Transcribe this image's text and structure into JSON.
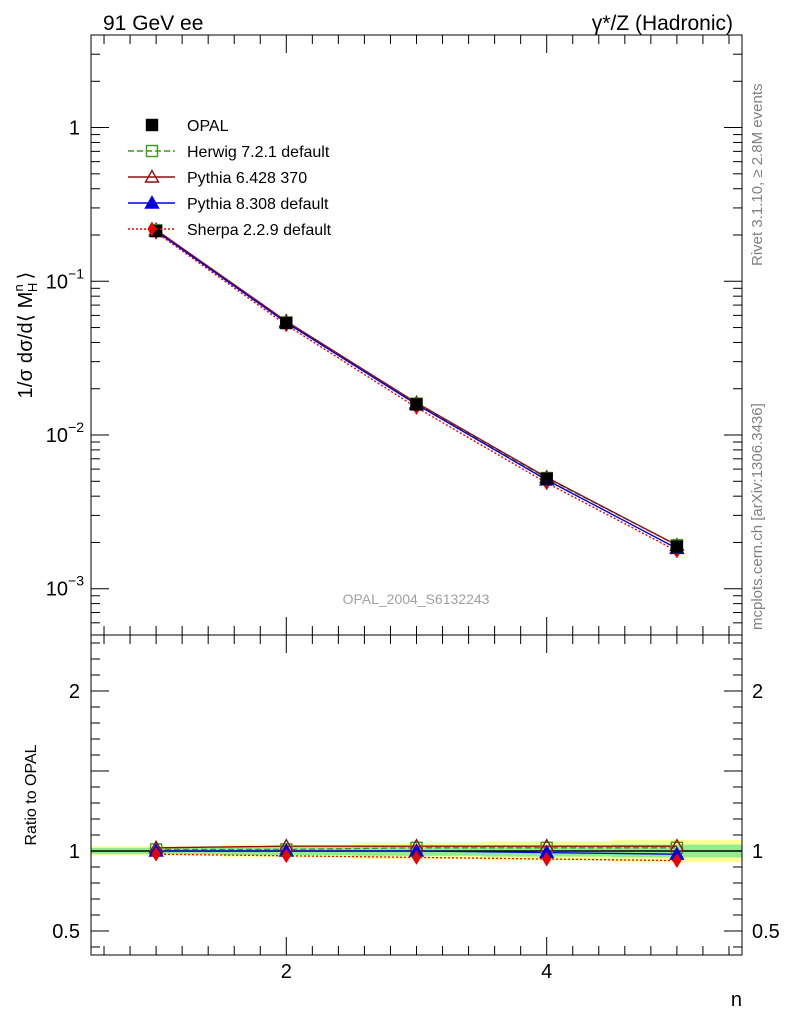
{
  "header": {
    "left_title": "91 GeV ee",
    "right_title": "γ*/Z (Hadronic)",
    "watermark": "OPAL_2004_S6132243",
    "side_rivet": "Rivet 3.1.10, ≥ 2.8M events",
    "side_mcplots": "mcplots.cern.ch [arXiv:1306.3436]"
  },
  "legend": [
    {
      "name": "OPAL",
      "color": "#000000",
      "marker": "filled-square",
      "line": "none"
    },
    {
      "name": "Herwig 7.2.1 default",
      "color": "#3a9a1a",
      "marker": "open-square",
      "line": "dashed"
    },
    {
      "name": "Pythia 6.428 370",
      "color": "#8b1010",
      "marker": "open-triangle",
      "line": "solid"
    },
    {
      "name": "Pythia 8.308 default",
      "color": "#0000dd",
      "marker": "filled-triangle",
      "line": "solid"
    },
    {
      "name": "Sherpa 2.2.9 default",
      "color": "#ee0000",
      "marker": "filled-diamond",
      "line": "dotted"
    }
  ],
  "chart_data": [
    {
      "type": "line",
      "panel": "main",
      "ylabel": "1/σ dσ/d⟨ M",
      "ylabel_sup": "n",
      "ylabel_sub": "H",
      "ylabel_end": "⟩",
      "yscale": "log",
      "ylim": [
        0.0005,
        4.0
      ],
      "xlim": [
        0.5,
        5.5
      ],
      "x": [
        1,
        2,
        3,
        4,
        5
      ],
      "yticks": [
        {
          "value": 1,
          "label": "1",
          "exp": ""
        },
        {
          "value": 0.1,
          "label": "10",
          "exp": "−1"
        },
        {
          "value": 0.01,
          "label": "10",
          "exp": "−2"
        },
        {
          "value": 0.001,
          "label": "10",
          "exp": "−3"
        }
      ],
      "series": [
        {
          "name": "OPAL",
          "values": [
            0.212,
            0.0535,
            0.0158,
            0.0052,
            0.00188
          ]
        },
        {
          "name": "Herwig 7.2.1 default",
          "values": [
            0.215,
            0.054,
            0.016,
            0.00525,
            0.00192
          ]
        },
        {
          "name": "Pythia 6.428 370",
          "values": [
            0.216,
            0.055,
            0.0162,
            0.0053,
            0.00192
          ]
        },
        {
          "name": "Pythia 8.308 default",
          "values": [
            0.212,
            0.0538,
            0.0158,
            0.0051,
            0.00183
          ]
        },
        {
          "name": "Sherpa 2.2.9 default",
          "values": [
            0.208,
            0.052,
            0.0151,
            0.00488,
            0.00176
          ]
        }
      ]
    },
    {
      "type": "line",
      "panel": "ratio",
      "ylabel": "Ratio to OPAL",
      "xlabel": "n",
      "ylim": [
        0.35,
        2.35
      ],
      "xlim": [
        0.5,
        5.5
      ],
      "x": [
        1,
        2,
        3,
        4,
        5
      ],
      "xticks": [
        {
          "value": 2,
          "label": "2"
        },
        {
          "value": 4,
          "label": "4"
        }
      ],
      "yticks": [
        {
          "value": 0.5,
          "label": "0.5"
        },
        {
          "value": 1,
          "label": "1"
        },
        {
          "value": 2,
          "label": "2"
        }
      ],
      "band_inner": [
        0.02,
        0.025,
        0.03,
        0.035,
        0.04
      ],
      "band_outer": [
        0.03,
        0.04,
        0.05,
        0.06,
        0.07
      ],
      "series": [
        {
          "name": "Herwig 7.2.1 default",
          "values": [
            1.01,
            1.01,
            1.02,
            1.02,
            1.02
          ]
        },
        {
          "name": "Pythia 6.428 370",
          "values": [
            1.02,
            1.03,
            1.03,
            1.03,
            1.03
          ]
        },
        {
          "name": "Pythia 8.308 default",
          "values": [
            1.0,
            1.0,
            1.0,
            0.99,
            0.98
          ]
        },
        {
          "name": "Sherpa 2.2.9 default",
          "values": [
            0.98,
            0.97,
            0.96,
            0.95,
            0.94
          ]
        }
      ]
    }
  ]
}
